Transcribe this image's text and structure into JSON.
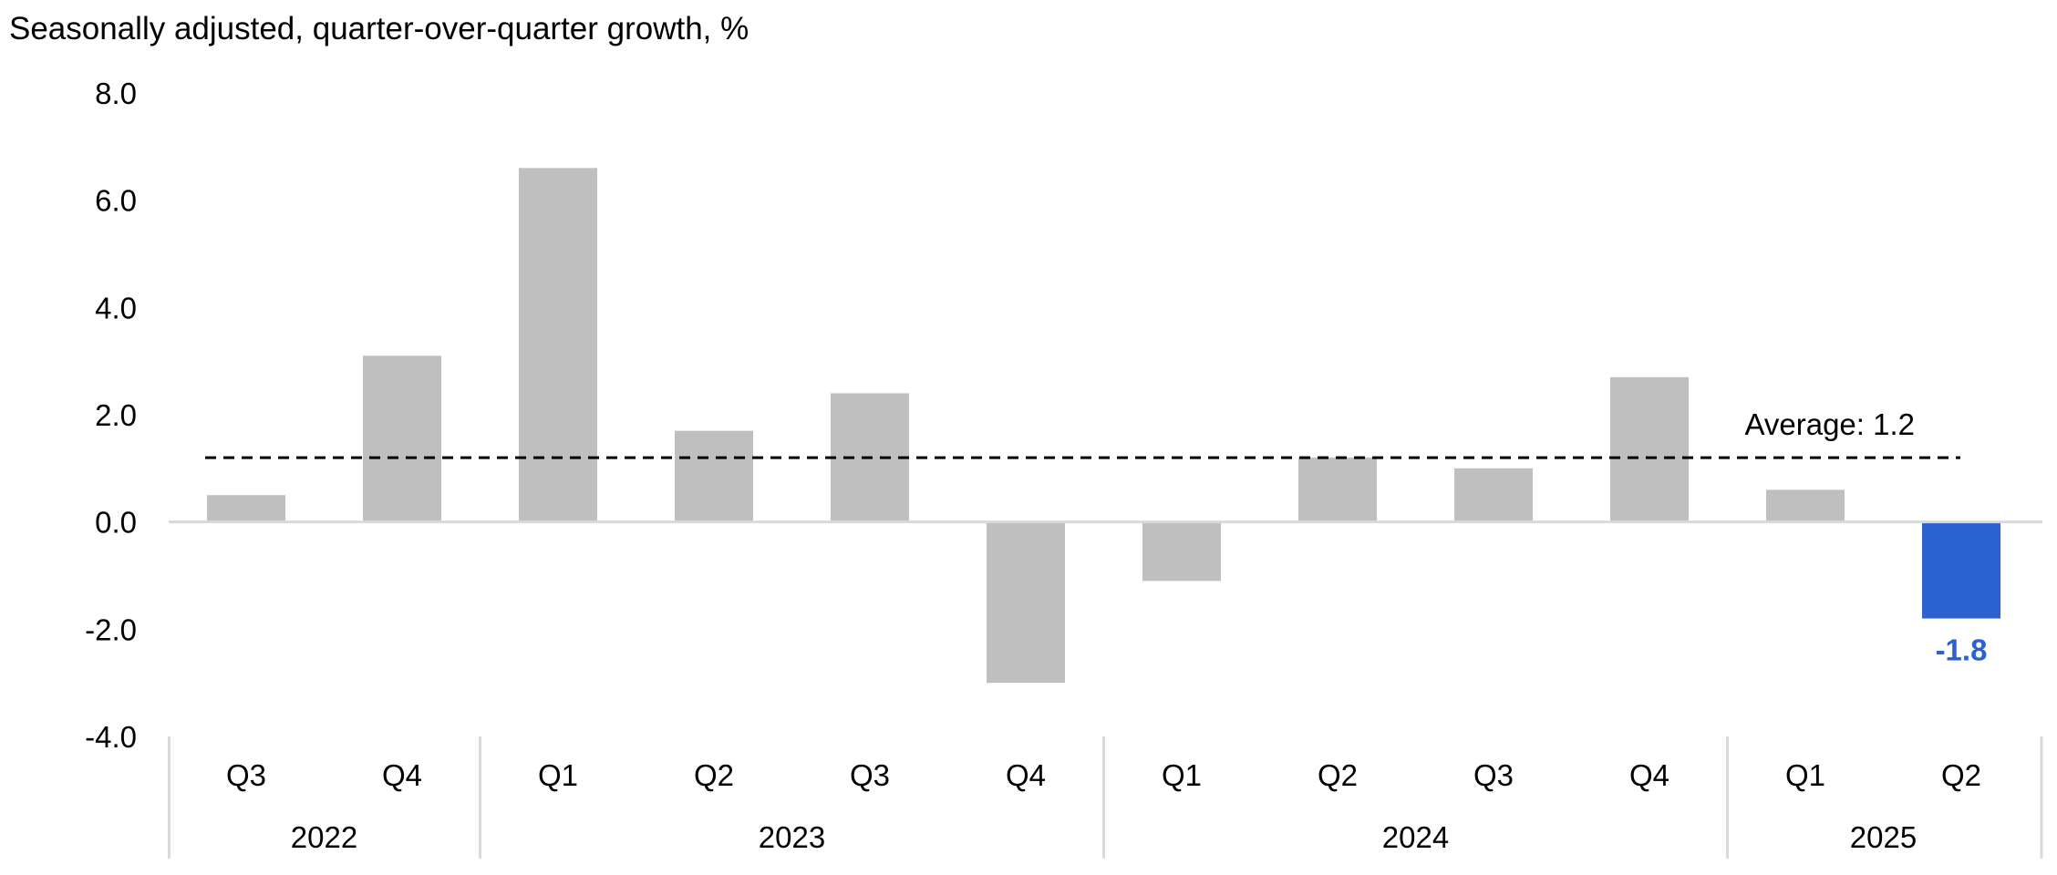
{
  "chart_data": {
    "type": "bar",
    "title": "Seasonally adjusted, quarter-over-quarter growth, %",
    "ylim": [
      -4.0,
      8.0
    ],
    "yticks": [
      "8.0",
      "6.0",
      "4.0",
      "2.0",
      "0.0",
      "-2.0",
      "-4.0"
    ],
    "categories": [
      "Q3",
      "Q4",
      "Q1",
      "Q2",
      "Q3",
      "Q4",
      "Q1",
      "Q2",
      "Q3",
      "Q4",
      "Q1",
      "Q2"
    ],
    "years": [
      {
        "label": "2022",
        "span": 2
      },
      {
        "label": "2023",
        "span": 4
      },
      {
        "label": "2024",
        "span": 4
      },
      {
        "label": "2025",
        "span": 2
      }
    ],
    "values": [
      0.5,
      3.1,
      6.6,
      1.7,
      2.4,
      -3.0,
      -1.1,
      1.2,
      1.0,
      2.7,
      0.6,
      -1.8
    ],
    "highlight_index": 11,
    "highlight_label": "-1.8",
    "average": 1.2,
    "average_label": "Average:  1.2",
    "colors": {
      "bar": "#bfbfbf",
      "highlight": "#2b62d0",
      "axis": "#d9d9d9",
      "average_line": "#000000"
    },
    "grid": false,
    "legend": "none"
  }
}
